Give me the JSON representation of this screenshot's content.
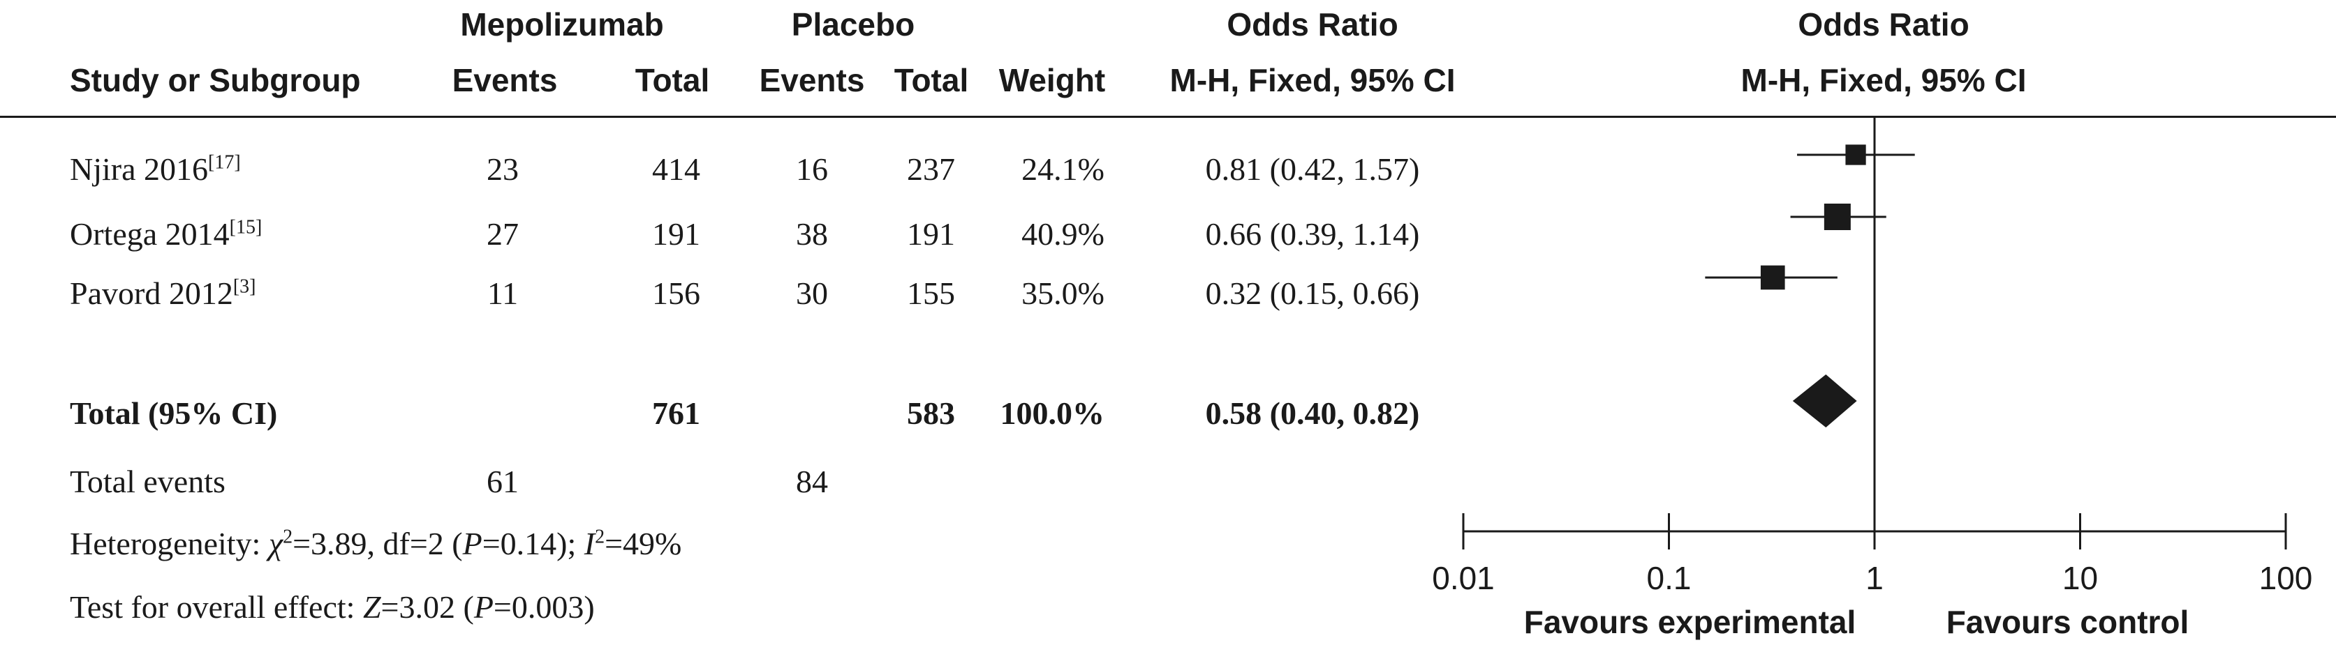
{
  "header": {
    "group1": "Mepolizumab",
    "group2": "Placebo",
    "study_col": "Study or Subgroup",
    "events": "Events",
    "total": "Total",
    "weight": "Weight",
    "or_title": "Odds Ratio",
    "or_method": "M-H, Fixed, 95% CI"
  },
  "studies": [
    {
      "name": "Njira 2016",
      "ref": "[17]",
      "exp_events": "23",
      "exp_total": "414",
      "ctl_events": "16",
      "ctl_total": "237",
      "weight": "24.1%",
      "ci_text": "0.81 (0.42, 1.57)"
    },
    {
      "name": "Ortega 2014",
      "ref": "[15]",
      "exp_events": "27",
      "exp_total": "191",
      "ctl_events": "38",
      "ctl_total": "191",
      "weight": "40.9%",
      "ci_text": "0.66 (0.39, 1.14)"
    },
    {
      "name": "Pavord 2012",
      "ref": "[3]",
      "exp_events": "11",
      "exp_total": "156",
      "ctl_events": "30",
      "ctl_total": "155",
      "weight": "35.0%",
      "ci_text": "0.32 (0.15, 0.66)"
    }
  ],
  "total": {
    "label": "Total (95% CI)",
    "exp_total": "761",
    "ctl_total": "583",
    "weight": "100.0%",
    "ci_text": "0.58 (0.40, 0.82)"
  },
  "total_events": {
    "label": "Total events",
    "exp": "61",
    "ctl": "84"
  },
  "heterogeneity": {
    "prefix": "Heterogeneity: ",
    "chi": "χ",
    "chi_sup": "2",
    "mid": "=3.89, df=2 (",
    "p": "P",
    "p_val": "=0.14); ",
    "i": "I",
    "i_sup": "2",
    "i_val": "=49%"
  },
  "overall": {
    "prefix": "Test for overall effect: ",
    "z": "Z",
    "z_val": "=3.02 (",
    "p": "P",
    "p_val": "=0.003)"
  },
  "chart_data": {
    "type": "forest",
    "title": "Odds Ratio",
    "subtitle": "M-H, Fixed, 95% CI",
    "x_scale": "log",
    "xlim": [
      0.01,
      100
    ],
    "ticks": [
      "0.01",
      "0.1",
      "1",
      "10",
      "100"
    ],
    "tick_values": [
      0.01,
      0.1,
      1,
      10,
      100
    ],
    "null_line": 1,
    "favours_left": "Favours experimental",
    "favours_right": "Favours control",
    "studies": [
      {
        "or": 0.81,
        "lower": 0.42,
        "upper": 1.57,
        "weight": 24.1
      },
      {
        "or": 0.66,
        "lower": 0.39,
        "upper": 1.14,
        "weight": 40.9
      },
      {
        "or": 0.32,
        "lower": 0.15,
        "upper": 0.66,
        "weight": 35.0
      }
    ],
    "pooled": {
      "or": 0.58,
      "lower": 0.4,
      "upper": 0.82
    }
  }
}
